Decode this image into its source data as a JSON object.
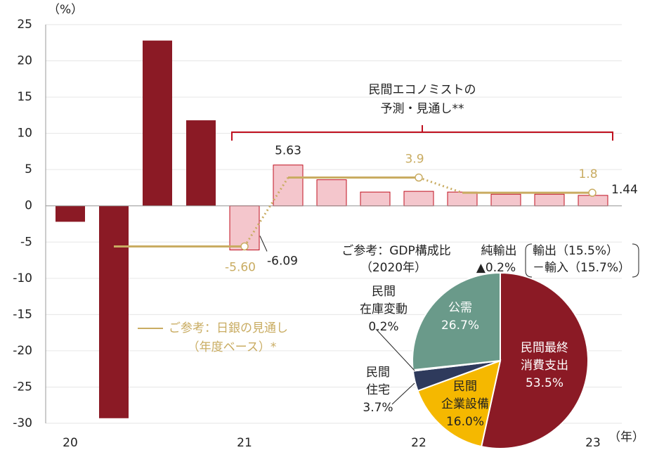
{
  "chart_data": [
    {
      "type": "bar",
      "y_unit": "（%）",
      "x_unit": "（年）",
      "categories": [
        "20",
        null,
        null,
        null,
        "21",
        null,
        null,
        null,
        "22",
        null,
        null,
        null,
        "23"
      ],
      "values": [
        -2.2,
        -29.3,
        22.8,
        11.8,
        -6.09,
        5.63,
        3.6,
        1.9,
        2.0,
        1.9,
        1.6,
        1.6,
        1.44
      ],
      "colors": [
        "#8b1a25",
        "#8b1a25",
        "#8b1a25",
        "#8b1a25",
        "#f4c6cc",
        "#f4c6cc",
        "#f4c6cc",
        "#f4c6cc",
        "#f4c6cc",
        "#f4c6cc",
        "#f4c6cc",
        "#f4c6cc",
        "#f4c6cc"
      ],
      "show_value": [
        false,
        false,
        false,
        false,
        true,
        true,
        false,
        false,
        false,
        false,
        false,
        false,
        true
      ],
      "ylim": [
        -30,
        25
      ],
      "yticks": [
        -30,
        -25,
        -20,
        -15,
        -10,
        -5,
        0,
        5,
        10,
        15,
        20,
        25
      ],
      "grid": true,
      "bracket_text": [
        "民間エコノミストの",
        "予測・見通し**"
      ],
      "boj": {
        "name_lines": [
          "ご参考：日銀の見通し",
          "（年度ベース）*"
        ],
        "color": "#c9ac62",
        "segments": [
          {
            "start": 1,
            "end": 4,
            "value": -5.6,
            "value_label": "-5.60"
          },
          {
            "start": 5,
            "end": 8,
            "value": 3.9
          },
          {
            "start": 9,
            "end": 12,
            "value": 1.8
          }
        ]
      }
    },
    {
      "type": "pie",
      "title_lines": [
        "ご参考：GDP構成比",
        "（2020年）"
      ],
      "slices": [
        {
          "name_lines": [
            "民間最終",
            "消費支出"
          ],
          "value": 53.5,
          "value_label": "53.5%",
          "color": "#8b1a25"
        },
        {
          "name_lines": [
            "民間",
            "企業設備"
          ],
          "value": 16.0,
          "value_label": "16.0%",
          "color": "#f5b800"
        },
        {
          "name_lines": [
            "民間",
            "住宅"
          ],
          "value": 3.7,
          "value_label": "3.7%",
          "color": "#2e3a5c"
        },
        {
          "name_lines": [
            "民間",
            "在庫変動"
          ],
          "value": 0.2,
          "value_label": "0.2%",
          "color": "#8b1a25"
        },
        {
          "name_lines": [
            "公需"
          ],
          "value": 26.7,
          "value_label": "26.7%",
          "color": "#6a9a8a"
        }
      ],
      "net_exports": {
        "name": "純輸出",
        "value": -0.2,
        "value_label": "▲0.2%",
        "breakdown": [
          {
            "value": 15.5,
            "label": "輸出（15.5%）"
          },
          {
            "value": 15.7,
            "label": "－輸入（15.7%）"
          }
        ]
      }
    }
  ]
}
